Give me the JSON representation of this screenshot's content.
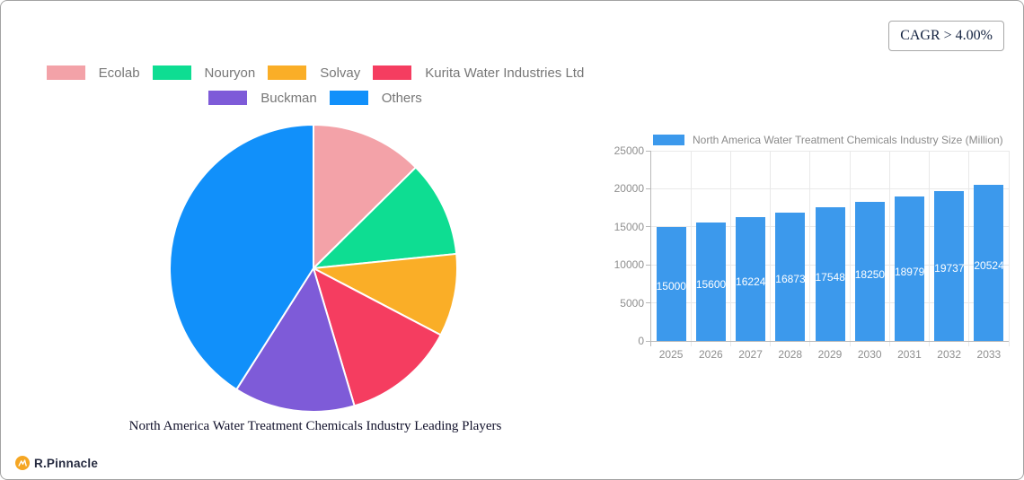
{
  "page": {
    "background": "#ffffff",
    "border_color": "#a3a3a3"
  },
  "cagr_badge": {
    "label": "CAGR > 4.00%"
  },
  "logo": {
    "text": "R.Pinnacle",
    "icon_color": "#f5a623",
    "text_color": "#262b40"
  },
  "chart_data": [
    {
      "type": "pie",
      "title": "North America Water Treatment Chemicals Industry Leading Players",
      "labels": [
        "Ecolab",
        "Nouryon",
        "Solvay",
        "Kurita Water Industries Ltd",
        "Buckman",
        "Others"
      ],
      "values_pct": [
        12.6,
        10.8,
        9.3,
        12.7,
        13.6,
        41.0
      ],
      "colors": [
        "#F3A2A8",
        "#0EDD92",
        "#FAAE27",
        "#F53D60",
        "#7E5BD8",
        "#1190FA"
      ],
      "start_angle_deg": 0,
      "direction": "clockwise",
      "slice_border_color": "#ffffff",
      "legend_position": "top",
      "legend_rows": [
        4,
        2
      ]
    },
    {
      "type": "bar",
      "legend": "North America Water Treatment Chemicals Industry Size (Million)",
      "categories": [
        "2025",
        "2026",
        "2027",
        "2028",
        "2029",
        "2030",
        "2031",
        "2032",
        "2033"
      ],
      "values": [
        15000,
        15600,
        16224,
        16873,
        17548,
        18250,
        18979,
        19737,
        20524
      ],
      "bar_color": "#3C99EC",
      "value_label_color": "#ffffff",
      "ylim": [
        0,
        25000
      ],
      "yticks": [
        0,
        5000,
        10000,
        15000,
        20000,
        25000
      ],
      "grid": true,
      "legend_position": "top"
    }
  ]
}
